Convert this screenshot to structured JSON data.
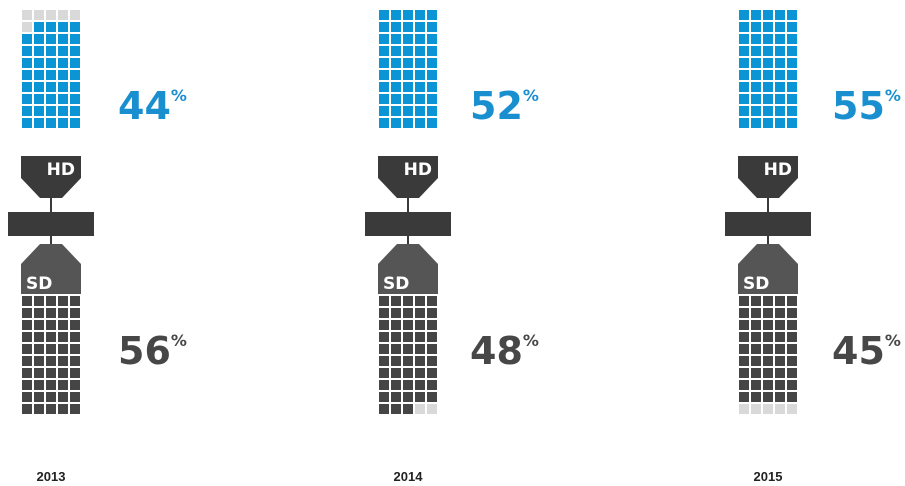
{
  "colors": {
    "hd": "#0b95d4",
    "sd": "#454545",
    "empty": "#d9d9d9",
    "connector": "#3a3a3a",
    "hd_text": "#1a8fd0",
    "sd_text": "#474747",
    "year_text": "#222222"
  },
  "chart_data": {
    "type": "waffle",
    "title": "",
    "grid": {
      "rows": 20,
      "cols": 5,
      "cells_per_panel": 100
    },
    "categories": [
      "2013",
      "2014",
      "2015"
    ],
    "series": [
      {
        "name": "HD",
        "values": [
          44,
          52,
          55
        ]
      },
      {
        "name": "SD",
        "values": [
          56,
          48,
          45
        ]
      }
    ],
    "value_suffix": "%",
    "panels": [
      {
        "year": "2013",
        "hd_label": "HD",
        "sd_label": "SD",
        "hd_value": "44",
        "sd_value": "56",
        "unit": "%"
      },
      {
        "year": "2014",
        "hd_label": "HD",
        "sd_label": "SD",
        "hd_value": "52",
        "sd_value": "48",
        "unit": "%"
      },
      {
        "year": "2015",
        "hd_label": "HD",
        "sd_label": "SD",
        "hd_value": "55",
        "sd_value": "45",
        "unit": "%"
      }
    ]
  }
}
